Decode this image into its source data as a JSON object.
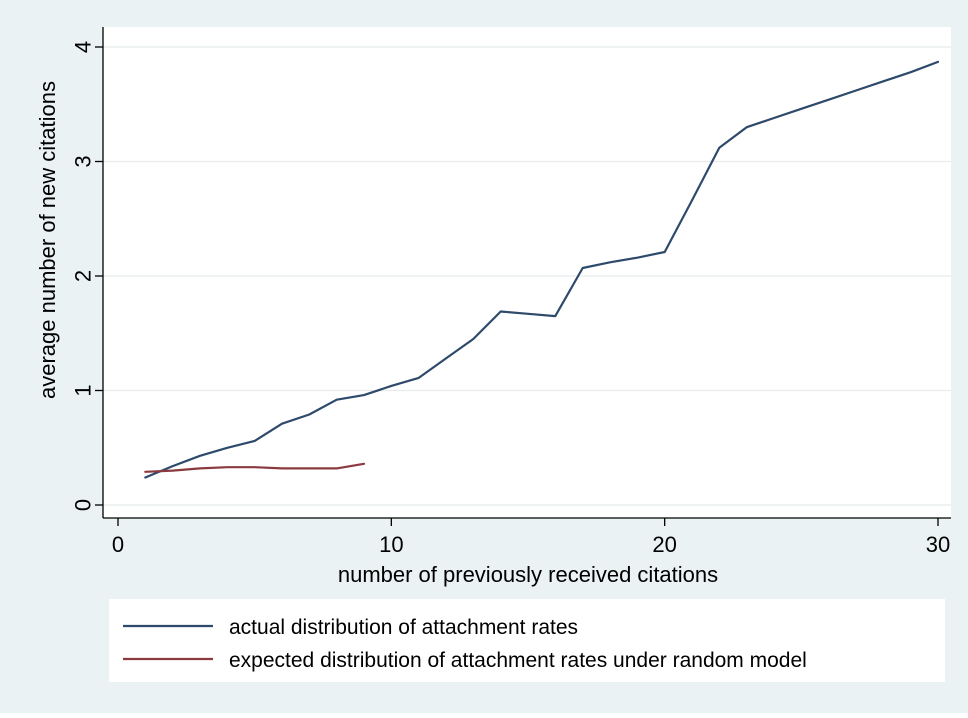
{
  "chart_data": {
    "type": "line",
    "title": "",
    "xlabel": "number of previously received citations",
    "ylabel": "average number of new citations",
    "xlim": [
      0,
      30
    ],
    "ylim": [
      0,
      4
    ],
    "x_ticks": [
      0,
      10,
      20,
      30
    ],
    "x_tick_labels": [
      "0",
      "10",
      "20",
      "30"
    ],
    "y_ticks": [
      0,
      1,
      2,
      3,
      4
    ],
    "y_tick_labels": [
      "0",
      "1",
      "2",
      "3",
      "4"
    ],
    "grid": "horizontal",
    "legend_position": "bottom",
    "series": [
      {
        "name": "actual distribution of attachment rates",
        "color": "#2e4a6b",
        "x": [
          1,
          2,
          3,
          4,
          5,
          6,
          7,
          8,
          9,
          10,
          11,
          12,
          13,
          14,
          15,
          16,
          17,
          18,
          19,
          20,
          21,
          22,
          23,
          24,
          25,
          26,
          27,
          28,
          29,
          30
        ],
        "y": [
          0.24,
          0.34,
          0.43,
          0.5,
          0.56,
          0.71,
          0.79,
          0.92,
          0.96,
          1.04,
          1.11,
          1.28,
          1.45,
          1.69,
          1.67,
          1.65,
          2.07,
          2.12,
          2.16,
          2.21,
          2.66,
          3.12,
          3.3,
          3.38,
          3.46,
          3.54,
          3.62,
          3.7,
          3.78,
          3.87
        ]
      },
      {
        "name": "expected distribution of attachment rates under random model",
        "color": "#8b3a3f",
        "x": [
          1,
          2,
          3,
          4,
          5,
          6,
          7,
          8,
          9
        ],
        "y": [
          0.29,
          0.3,
          0.32,
          0.33,
          0.33,
          0.32,
          0.32,
          0.32,
          0.36
        ]
      }
    ]
  }
}
